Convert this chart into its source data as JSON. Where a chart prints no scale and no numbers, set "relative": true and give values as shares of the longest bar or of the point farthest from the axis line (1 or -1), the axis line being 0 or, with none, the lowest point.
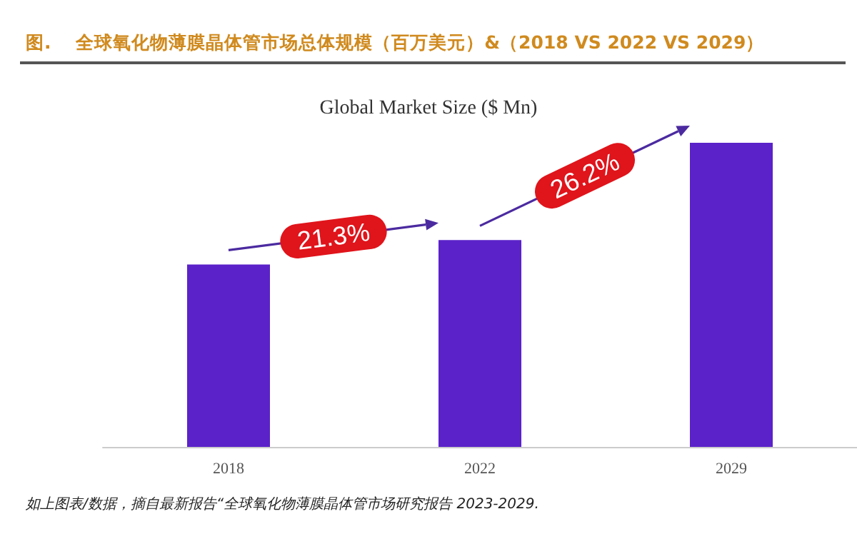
{
  "chart_data": {
    "type": "bar",
    "title": "图.    全球氧化物薄膜晶体管市场总体规模（百万美元）&（2018 VS 2022 VS 2029）",
    "subtitle": "Global Market Size ($ Mn)",
    "categories": [
      "2018",
      "2022",
      "2029"
    ],
    "values": [
      0.6,
      0.68,
      1
    ],
    "color": "#5b22c9",
    "relative": true,
    "annotations": [
      "21.3%",
      "26.2%",
      "如上图表/数据，摘自最新报告“全球氧化物薄膜晶体管市场研究报告 2023-2029."
    ]
  }
}
